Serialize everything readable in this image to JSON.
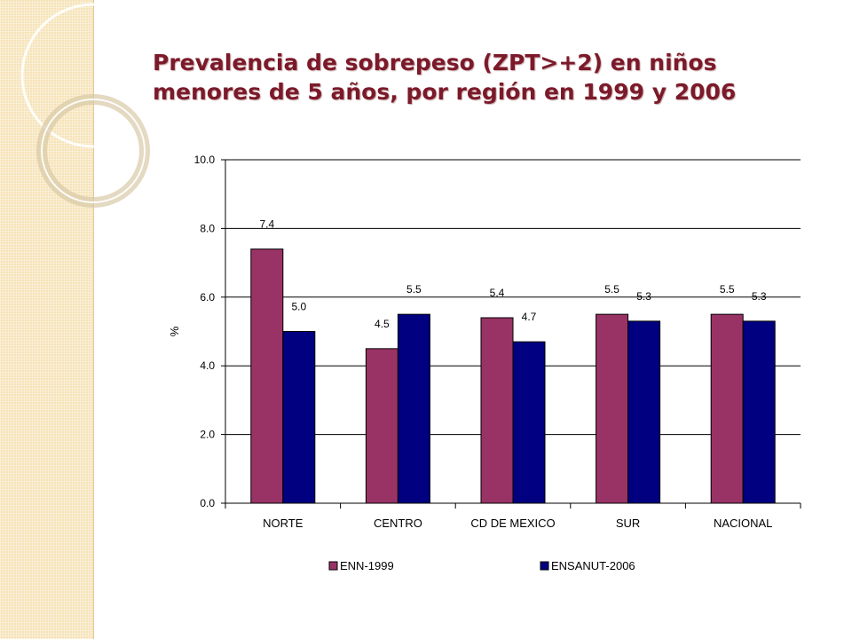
{
  "title_lines": [
    "Prevalencia de sobrepeso (ZPT>+2) en niños",
    "menores de 5 años, por región en 1999 y 2006"
  ],
  "colors": {
    "ENN-1999": "#993366",
    "ENSANUT-2006": "#000080",
    "title": "#7b1a2a"
  },
  "chart_data": {
    "type": "bar",
    "title": "Prevalencia de sobrepeso (ZPT>+2) en niños menores de 5 años, por región en 1999 y 2006",
    "categories": [
      "NORTE",
      "CENTRO",
      "CD DE MEXICO",
      "SUR",
      "NACIONAL"
    ],
    "series": [
      {
        "name": "ENN-1999",
        "values": [
          7.4,
          4.5,
          5.4,
          5.5,
          5.5
        ],
        "labels": [
          "7.4",
          "4.5",
          "5.4",
          "5.5",
          "5.5"
        ]
      },
      {
        "name": "ENSANUT-2006",
        "values": [
          5.0,
          5.5,
          4.7,
          5.3,
          5.3
        ],
        "labels": [
          "5.0",
          "5.5",
          "4.7",
          "5.3",
          "5.3"
        ]
      }
    ],
    "xlabel": "",
    "ylabel": "%",
    "ylim": [
      0,
      10
    ],
    "yticks": [
      "0.0",
      "2.0",
      "4.0",
      "6.0",
      "8.0",
      "10.0"
    ],
    "grid": true,
    "legend_position": "bottom"
  }
}
